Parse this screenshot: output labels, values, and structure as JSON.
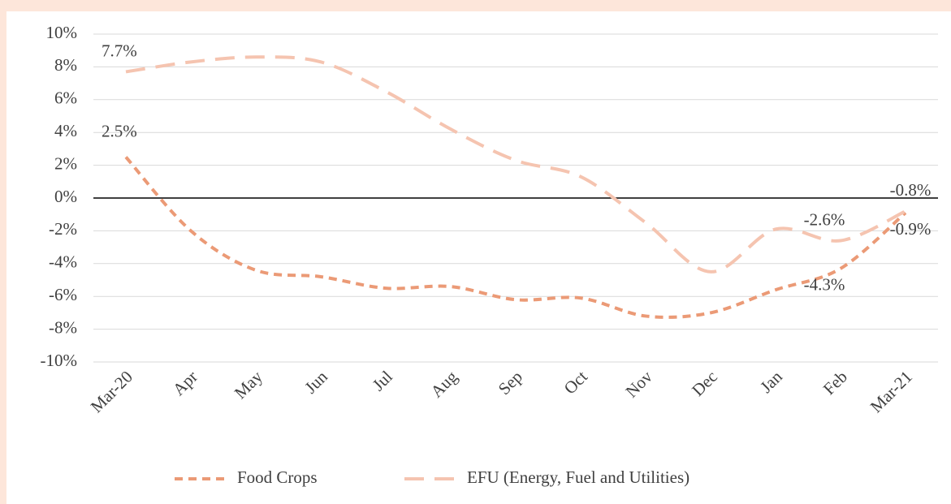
{
  "chart_data": {
    "type": "line",
    "categories": [
      "Mar-20",
      "Apr",
      "May",
      "Jun",
      "Jul",
      "Aug",
      "Sep",
      "Oct",
      "Nov",
      "Dec",
      "Jan",
      "Feb",
      "Mar-21"
    ],
    "series": [
      {
        "name": "Food Crops",
        "color": "#eb9a76",
        "dash": "10 7",
        "values": [
          2.5,
          -2.0,
          -4.4,
          -4.8,
          -5.5,
          -5.4,
          -6.2,
          -6.1,
          -7.2,
          -7.0,
          -5.6,
          -4.3,
          -0.9
        ],
        "value_labels": [
          "2.5%",
          null,
          null,
          null,
          null,
          null,
          null,
          null,
          null,
          null,
          null,
          "-4.3%",
          "-0.9%"
        ]
      },
      {
        "name": "EFU (Energy, Fuel and Utilities)",
        "color": "#f5c4b0",
        "dash": "24 13",
        "values": [
          7.7,
          8.3,
          8.6,
          8.3,
          6.5,
          4.2,
          2.3,
          1.3,
          -1.5,
          -4.5,
          -1.9,
          -2.6,
          -0.8
        ],
        "value_labels": [
          "7.7%",
          null,
          null,
          null,
          null,
          null,
          null,
          null,
          null,
          null,
          null,
          "-2.6%",
          "-0.8%"
        ]
      }
    ],
    "ylim": [
      -10,
      10
    ],
    "yticks": [
      {
        "value": -10,
        "label": "-10%"
      },
      {
        "value": -8,
        "label": "-8%"
      },
      {
        "value": -6,
        "label": "-6%"
      },
      {
        "value": -4,
        "label": "-4%"
      },
      {
        "value": -2,
        "label": "-2%"
      },
      {
        "value": 0,
        "label": "0%"
      },
      {
        "value": 2,
        "label": "2%"
      },
      {
        "value": 4,
        "label": "4%"
      },
      {
        "value": 6,
        "label": "6%"
      },
      {
        "value": 8,
        "label": "8%"
      },
      {
        "value": 10,
        "label": "10%"
      }
    ],
    "grid": true,
    "legend": "bottom"
  }
}
